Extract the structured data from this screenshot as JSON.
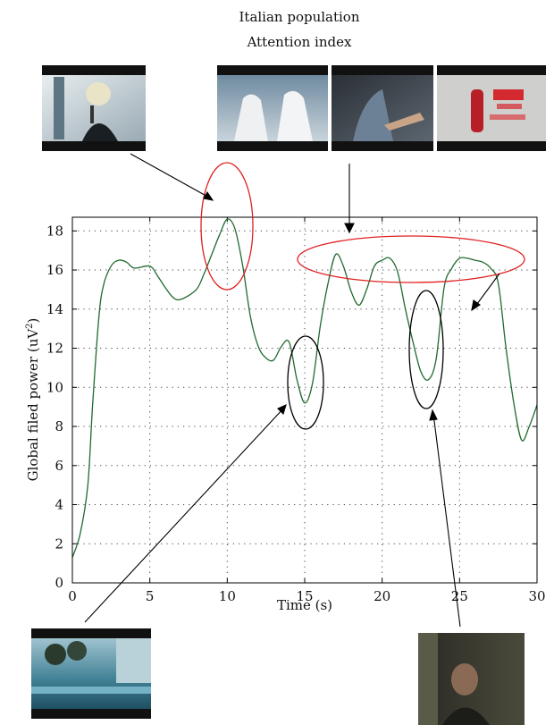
{
  "chart_data": {
    "type": "line",
    "title": "Italian population",
    "subtitle": "Attention index",
    "xlabel": "Time (s)",
    "ylabel": "Global filed power (uV",
    "ylabel_sup": "2",
    "ylabel_close": ")",
    "xlim": [
      0,
      30
    ],
    "ylim": [
      0,
      18.7
    ],
    "xticks": [
      0,
      5,
      10,
      15,
      20,
      25,
      30
    ],
    "yticks": [
      0,
      2,
      4,
      6,
      8,
      10,
      12,
      14,
      16,
      18
    ],
    "grid": true,
    "series": [
      {
        "color": "#1f6b2e",
        "x": [
          0,
          0.5,
          1,
          1.3,
          1.7,
          2,
          2.5,
          3,
          3.5,
          4,
          5,
          5.5,
          6,
          6.5,
          7,
          8,
          8.5,
          9,
          9.5,
          10,
          10.5,
          11,
          11.5,
          12,
          12.5,
          13,
          13.5,
          14,
          14.5,
          15,
          15.5,
          16,
          16.5,
          17,
          17.5,
          18,
          18.5,
          19,
          19.5,
          20,
          20.5,
          21,
          21.5,
          22,
          22.5,
          23,
          23.5,
          24,
          24.5,
          25,
          25.5,
          26,
          26.5,
          27,
          27.5,
          28,
          28.5,
          29,
          29.5,
          30
        ],
        "y": [
          1.3,
          2.5,
          5,
          9,
          13.5,
          15.2,
          16.2,
          16.5,
          16.4,
          16.1,
          16.2,
          15.7,
          15.1,
          14.6,
          14.5,
          15,
          15.8,
          16.8,
          17.8,
          18.6,
          18.1,
          16.2,
          13.6,
          12.1,
          11.5,
          11.4,
          12.1,
          12.3,
          10.4,
          9.2,
          10.2,
          13.1,
          15.3,
          16.8,
          16.2,
          14.9,
          14.2,
          15,
          16.2,
          16.5,
          16.6,
          15.9,
          14,
          12.3,
          10.8,
          10.4,
          11.5,
          15.1,
          16.1,
          16.6,
          16.6,
          16.5,
          16.4,
          16.1,
          15.3,
          12,
          9.2,
          7.3,
          8,
          9.1
        ]
      }
    ]
  }
}
